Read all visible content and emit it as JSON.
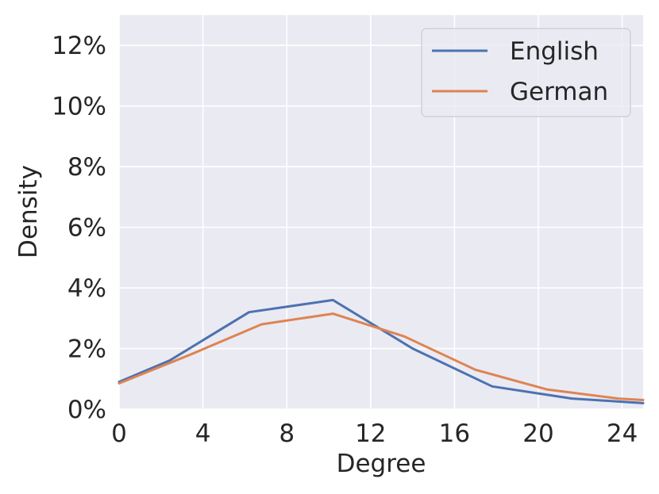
{
  "chart_data": {
    "type": "line",
    "xlabel": "Degree",
    "ylabel": "Density",
    "xlim": [
      0,
      25
    ],
    "ylim": [
      0,
      13
    ],
    "x_ticks": [
      0,
      4,
      8,
      12,
      16,
      20,
      24
    ],
    "x_tick_labels": [
      "0",
      "4",
      "8",
      "12",
      "16",
      "20",
      "24"
    ],
    "y_ticks": [
      0,
      2,
      4,
      6,
      8,
      10,
      12
    ],
    "y_tick_labels": [
      "0%",
      "2%",
      "4%",
      "6%",
      "8%",
      "10%",
      "12%"
    ],
    "grid": true,
    "legend_position": "top-right",
    "series": [
      {
        "name": "English",
        "color": "#4c72b0",
        "x": [
          0,
          2.4,
          6.2,
          10.2,
          14.0,
          17.8,
          21.6,
          25
        ],
        "y": [
          0.9,
          1.6,
          3.2,
          3.6,
          2.0,
          0.75,
          0.35,
          0.2
        ]
      },
      {
        "name": "German",
        "color": "#dd8452",
        "x": [
          0,
          3.4,
          6.8,
          10.2,
          13.6,
          17.0,
          20.4,
          23.8,
          25
        ],
        "y": [
          0.85,
          1.8,
          2.8,
          3.15,
          2.4,
          1.3,
          0.65,
          0.35,
          0.3
        ]
      }
    ]
  }
}
